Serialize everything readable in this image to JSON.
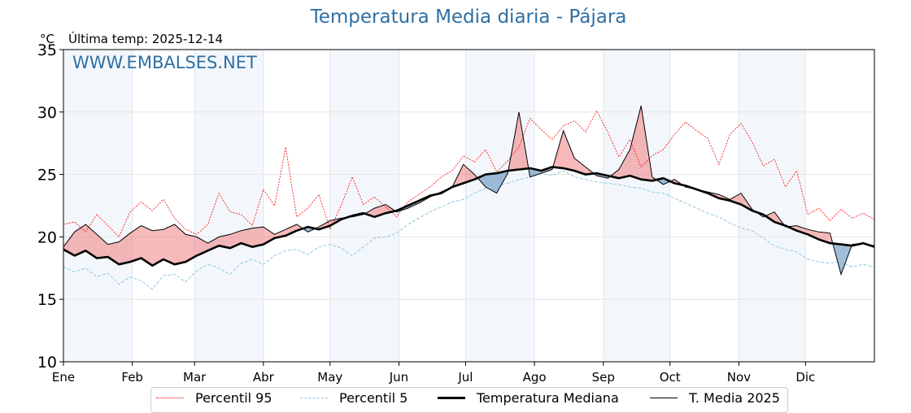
{
  "header": {
    "title": "Temperatura Media diaria - Pájara",
    "unit": "°C",
    "last_temp_label": "Última temp: 2025-12-14",
    "watermark": "WWW.EMBALSES.NET"
  },
  "legend": {
    "items": [
      {
        "label": "Percentil 95",
        "color": "#ff0000",
        "style": "dotted"
      },
      {
        "label": "Percentil 5",
        "color": "#8fcbe0",
        "style": "dashed"
      },
      {
        "label": "Temperatura Mediana",
        "color": "#000000",
        "style": "thick"
      },
      {
        "label": "T. Media 2025",
        "color": "#000000",
        "style": "thin"
      }
    ]
  },
  "colors": {
    "above_fill": "#f08080",
    "below_fill": "#4f87b8",
    "month_shade": "#f3f7fb",
    "title": "#2f6fa3"
  },
  "chart_data": {
    "type": "line",
    "title": "Temperatura Media diaria - Pájara",
    "xlabel": "",
    "ylabel": "°C",
    "ylim": [
      10,
      35
    ],
    "xlim_days": [
      1,
      366
    ],
    "yticks": [
      10,
      15,
      20,
      25,
      30,
      35
    ],
    "month_ticks": [
      {
        "label": "Ene",
        "day": 1
      },
      {
        "label": "Feb",
        "day": 32
      },
      {
        "label": "Mar",
        "day": 60
      },
      {
        "label": "Abr",
        "day": 91
      },
      {
        "label": "May",
        "day": 121
      },
      {
        "label": "Jun",
        "day": 152
      },
      {
        "label": "Jul",
        "day": 182
      },
      {
        "label": "Ago",
        "day": 213
      },
      {
        "label": "Sep",
        "day": 244
      },
      {
        "label": "Oct",
        "day": 274
      },
      {
        "label": "Nov",
        "day": 305
      },
      {
        "label": "Dic",
        "day": 335
      }
    ],
    "grid": true,
    "legend_position": "bottom-center",
    "x_days": [
      1,
      6,
      11,
      16,
      21,
      26,
      31,
      36,
      41,
      46,
      51,
      56,
      61,
      66,
      71,
      76,
      81,
      86,
      91,
      96,
      101,
      106,
      111,
      116,
      121,
      126,
      131,
      136,
      141,
      146,
      151,
      156,
      161,
      166,
      171,
      176,
      181,
      186,
      191,
      196,
      201,
      206,
      211,
      216,
      221,
      226,
      231,
      236,
      241,
      246,
      251,
      256,
      261,
      266,
      271,
      276,
      281,
      286,
      291,
      296,
      301,
      306,
      311,
      316,
      321,
      326,
      331,
      336,
      341,
      346,
      351,
      356,
      361,
      366
    ],
    "series": [
      {
        "name": "Percentil 95",
        "values": [
          21.0,
          21.2,
          20.4,
          21.8,
          20.9,
          20.0,
          22.0,
          22.8,
          22.1,
          23.0,
          21.5,
          20.6,
          20.2,
          21.0,
          23.5,
          22.0,
          21.8,
          20.9,
          23.8,
          22.5,
          27.2,
          21.6,
          22.3,
          23.4,
          20.6,
          22.5,
          24.8,
          22.6,
          23.2,
          22.4,
          21.6,
          22.8,
          23.4,
          24.0,
          24.8,
          25.3,
          26.5,
          26.0,
          27.0,
          25.2,
          26.1,
          27.2,
          29.5,
          28.6,
          27.8,
          28.9,
          29.3,
          28.4,
          30.1,
          28.4,
          26.4,
          27.8,
          25.6,
          26.5,
          27.0,
          28.2,
          29.2,
          28.5,
          27.9,
          25.8,
          28.2,
          29.1,
          27.6,
          25.7,
          26.2,
          24.0,
          25.3,
          21.8,
          22.3,
          21.3,
          22.2,
          21.5,
          21.9,
          21.4
        ]
      },
      {
        "name": "Percentil 5",
        "values": [
          17.6,
          17.2,
          17.5,
          16.8,
          17.1,
          16.2,
          16.8,
          16.5,
          15.8,
          16.9,
          17.0,
          16.4,
          17.3,
          17.8,
          17.5,
          17.0,
          17.9,
          18.2,
          17.8,
          18.5,
          18.9,
          19.0,
          18.6,
          19.2,
          19.4,
          19.1,
          18.5,
          19.2,
          19.9,
          20.0,
          20.3,
          21.0,
          21.5,
          22.0,
          22.4,
          22.8,
          23.0,
          23.5,
          23.9,
          24.1,
          24.3,
          24.6,
          24.8,
          25.1,
          24.9,
          25.3,
          24.8,
          24.6,
          24.4,
          24.3,
          24.2,
          24.0,
          23.9,
          23.6,
          23.5,
          23.1,
          22.7,
          22.3,
          21.9,
          21.6,
          21.1,
          20.7,
          20.5,
          19.9,
          19.3,
          19.0,
          18.8,
          18.2,
          18.0,
          17.9,
          18.0,
          17.6,
          17.8,
          17.6
        ]
      },
      {
        "name": "Temperatura Mediana",
        "values": [
          19.0,
          18.5,
          18.9,
          18.3,
          18.4,
          17.8,
          18.0,
          18.3,
          17.7,
          18.2,
          17.8,
          18.0,
          18.5,
          18.9,
          19.3,
          19.1,
          19.5,
          19.2,
          19.4,
          19.9,
          20.1,
          20.5,
          20.8,
          20.6,
          20.9,
          21.4,
          21.7,
          21.9,
          21.6,
          21.9,
          22.1,
          22.5,
          22.9,
          23.3,
          23.5,
          24.0,
          24.3,
          24.6,
          25.0,
          25.1,
          25.3,
          25.4,
          25.5,
          25.3,
          25.6,
          25.5,
          25.3,
          25.0,
          25.1,
          24.9,
          24.7,
          24.9,
          24.6,
          24.5,
          24.7,
          24.3,
          24.1,
          23.8,
          23.5,
          23.1,
          22.9,
          22.6,
          22.1,
          21.8,
          21.2,
          20.9,
          20.5,
          20.2,
          19.8,
          19.5,
          19.4,
          19.3,
          19.5,
          19.2
        ]
      },
      {
        "name": "T. Media 2025",
        "values": [
          19.2,
          20.4,
          21.0,
          20.2,
          19.4,
          19.6,
          20.3,
          20.9,
          20.5,
          20.6,
          21.0,
          20.2,
          20.0,
          19.5,
          20.0,
          20.2,
          20.5,
          20.7,
          20.8,
          20.2,
          20.6,
          21.0,
          20.4,
          20.8,
          21.3,
          21.5,
          21.6,
          21.8,
          22.3,
          22.6,
          22.0,
          22.3,
          22.7,
          23.2,
          23.6,
          24.0,
          25.8,
          25.0,
          24.0,
          23.5,
          25.1,
          30.0,
          24.8,
          25.1,
          25.4,
          28.5,
          26.3,
          25.6,
          24.9,
          24.7,
          25.4,
          27.0,
          30.5,
          24.8,
          24.2,
          24.6,
          24.0,
          23.8,
          23.6,
          23.4,
          23.0,
          23.5,
          22.2,
          21.6,
          22.0,
          20.8,
          20.9,
          20.6,
          20.4,
          20.3,
          17.0,
          19.4,
          19.5,
          19.3
        ]
      }
    ]
  }
}
